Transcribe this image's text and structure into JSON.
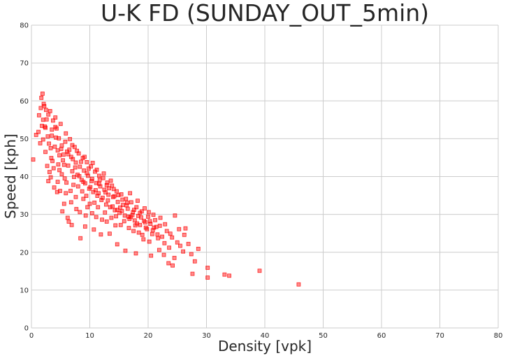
{
  "chart_data": {
    "type": "scatter",
    "title": "U-K FD (SUNDAY_OUT_5min)",
    "xlabel": "Density [vpk]",
    "ylabel": "Speed [kph]",
    "xlim": [
      0,
      80
    ],
    "ylim": [
      0,
      80
    ],
    "xticks": [
      "0",
      "10",
      "20",
      "30",
      "40",
      "50",
      "60",
      "70",
      "80"
    ],
    "yticks": [
      "0",
      "10",
      "20",
      "30",
      "40",
      "50",
      "60",
      "70",
      "80"
    ],
    "grid": true,
    "marker": "square",
    "color": "#ff0000",
    "points": [
      [
        0.3,
        44.5
      ],
      [
        0.8,
        51
      ],
      [
        1.2,
        51.8
      ],
      [
        1.7,
        60.8
      ],
      [
        1.9,
        61.9
      ],
      [
        2.1,
        59.2
      ],
      [
        2.0,
        55
      ],
      [
        2.3,
        53.2
      ],
      [
        2.5,
        57.6
      ],
      [
        2.8,
        50.6
      ],
      [
        3.0,
        48.7
      ],
      [
        3.3,
        47.5
      ],
      [
        3.5,
        52.4
      ],
      [
        3.6,
        44.1
      ],
      [
        3.8,
        42.2
      ],
      [
        4.1,
        55.6
      ],
      [
        4.2,
        50.3
      ],
      [
        4.5,
        46.9
      ],
      [
        4.8,
        41.7
      ],
      [
        5.0,
        53.9
      ],
      [
        5.2,
        48.2
      ],
      [
        5.4,
        44.3
      ],
      [
        5.7,
        39.5
      ],
      [
        5.9,
        51.4
      ],
      [
        6.1,
        46.6
      ],
      [
        6.3,
        42.9
      ],
      [
        6.6,
        49.9
      ],
      [
        6.8,
        45.2
      ],
      [
        7.0,
        41.4
      ],
      [
        7.2,
        37.8
      ],
      [
        7.4,
        47.8
      ],
      [
        7.6,
        43.7
      ],
      [
        7.9,
        40.5
      ],
      [
        8.1,
        46.1
      ],
      [
        8.3,
        42.6
      ],
      [
        8.6,
        39.1
      ],
      [
        8.8,
        44.9
      ],
      [
        9.0,
        41.6
      ],
      [
        9.2,
        38.2
      ],
      [
        9.5,
        43.8
      ],
      [
        9.7,
        40.2
      ],
      [
        9.9,
        36.8
      ],
      [
        10.2,
        42.7
      ],
      [
        10.4,
        39.4
      ],
      [
        10.6,
        35.9
      ],
      [
        10.9,
        41.3
      ],
      [
        11.1,
        38.3
      ],
      [
        11.3,
        34.9
      ],
      [
        11.6,
        40.2
      ],
      [
        11.8,
        37.4
      ],
      [
        12.0,
        33.8
      ],
      [
        12.3,
        39.6
      ],
      [
        12.5,
        36.5
      ],
      [
        12.8,
        32.6
      ],
      [
        13.0,
        38.4
      ],
      [
        13.2,
        35.2
      ],
      [
        13.5,
        31.9
      ],
      [
        13.8,
        37.6
      ],
      [
        14.0,
        34.6
      ],
      [
        14.3,
        31.1
      ],
      [
        14.6,
        36.1
      ],
      [
        14.8,
        33.3
      ],
      [
        15.1,
        30.4
      ],
      [
        15.4,
        35.3
      ],
      [
        15.7,
        32.5
      ],
      [
        16.0,
        29.7
      ],
      [
        16.2,
        34.1
      ],
      [
        16.5,
        31.5
      ],
      [
        16.8,
        28.8
      ],
      [
        17.1,
        33.2
      ],
      [
        17.4,
        30.6
      ],
      [
        17.7,
        28.4
      ],
      [
        18.0,
        31.9
      ],
      [
        18.3,
        29.6
      ],
      [
        18.6,
        27.2
      ],
      [
        18.9,
        30.8
      ],
      [
        19.3,
        28.3
      ],
      [
        19.6,
        26.5
      ],
      [
        20.0,
        29.4
      ],
      [
        20.4,
        27.5
      ],
      [
        20.8,
        25.8
      ],
      [
        21.2,
        28.5
      ],
      [
        21.6,
        24.7
      ],
      [
        22.0,
        27.0
      ],
      [
        22.4,
        24.1
      ],
      [
        22.8,
        22.4
      ],
      [
        23.2,
        25.6
      ],
      [
        23.6,
        21.2
      ],
      [
        24.1,
        23.9
      ],
      [
        24.5,
        18.5
      ],
      [
        25.0,
        22.6
      ],
      [
        25.5,
        21.7
      ],
      [
        26.0,
        20.2
      ],
      [
        26.4,
        26.3
      ],
      [
        26.9,
        22.2
      ],
      [
        27.4,
        19.5
      ],
      [
        28.0,
        17.6
      ],
      [
        28.6,
        20.9
      ],
      [
        30.2,
        15.9
      ],
      [
        30.2,
        13.3
      ],
      [
        33.1,
        14.1
      ],
      [
        33.9,
        13.8
      ],
      [
        39.1,
        15.1
      ],
      [
        45.8,
        11.5
      ],
      [
        2.4,
        46.5
      ],
      [
        3.1,
        41.2
      ],
      [
        4.4,
        35.9
      ],
      [
        5.6,
        32.8
      ],
      [
        6.2,
        29.1
      ],
      [
        6.9,
        27.2
      ],
      [
        7.7,
        31.4
      ],
      [
        8.9,
        34.1
      ],
      [
        9.6,
        31.9
      ],
      [
        10.4,
        30.3
      ],
      [
        11.1,
        29.3
      ],
      [
        12.1,
        28.6
      ],
      [
        13.4,
        24.9
      ],
      [
        14.7,
        22.1
      ],
      [
        16.1,
        20.4
      ],
      [
        17.9,
        19.7
      ],
      [
        19.2,
        23.4
      ],
      [
        20.5,
        19.1
      ],
      [
        21.9,
        20.6
      ],
      [
        22.7,
        19.3
      ],
      [
        23.5,
        17.1
      ],
      [
        24.2,
        16.5
      ],
      [
        27.6,
        14.3
      ],
      [
        2.9,
        38.8
      ],
      [
        3.9,
        37.1
      ],
      [
        4.9,
        36.2
      ],
      [
        5.3,
        30.8
      ],
      [
        6.4,
        28.1
      ],
      [
        8.4,
        23.7
      ],
      [
        9.2,
        26.8
      ],
      [
        10.7,
        26.0
      ],
      [
        11.9,
        24.7
      ],
      [
        12.9,
        28.1
      ],
      [
        15.3,
        27.2
      ],
      [
        18.4,
        25.2
      ],
      [
        1.5,
        48.8
      ],
      [
        1.8,
        53.4
      ],
      [
        2.2,
        58.6
      ],
      [
        2.6,
        55.1
      ],
      [
        3.2,
        57.3
      ],
      [
        3.7,
        54.8
      ],
      [
        4.3,
        52.7
      ],
      [
        4.7,
        50.1
      ],
      [
        5.1,
        47.3
      ],
      [
        5.5,
        45.8
      ],
      [
        5.8,
        49.2
      ],
      [
        6.5,
        47.1
      ],
      [
        7.1,
        44.6
      ],
      [
        7.8,
        46.8
      ],
      [
        8.5,
        43.9
      ],
      [
        9.1,
        45.2
      ],
      [
        9.8,
        42.1
      ],
      [
        10.5,
        43.6
      ],
      [
        11.2,
        41.8
      ],
      [
        11.7,
        39.1
      ],
      [
        12.4,
        40.8
      ],
      [
        12.9,
        37.7
      ],
      [
        13.6,
        38.9
      ],
      [
        14.1,
        36.7
      ],
      [
        14.9,
        35.1
      ],
      [
        15.6,
        33.9
      ],
      [
        16.3,
        32.4
      ],
      [
        16.9,
        35.6
      ],
      [
        17.6,
        31.2
      ],
      [
        18.2,
        33.6
      ],
      [
        18.8,
        29.2
      ],
      [
        19.4,
        31.6
      ],
      [
        20.1,
        30.6
      ],
      [
        20.9,
        29.9
      ],
      [
        21.4,
        26.7
      ],
      [
        22.1,
        29.1
      ],
      [
        22.9,
        27.4
      ],
      [
        23.8,
        24.9
      ],
      [
        24.6,
        29.7
      ],
      [
        25.3,
        26.1
      ],
      [
        26.2,
        24.6
      ],
      [
        2.7,
        42.8
      ],
      [
        3.4,
        44.9
      ],
      [
        4.0,
        47.9
      ],
      [
        4.6,
        43.2
      ],
      [
        5.2,
        40.6
      ],
      [
        6.0,
        38.4
      ],
      [
        6.7,
        36.2
      ],
      [
        7.3,
        39.9
      ],
      [
        8.0,
        37.4
      ],
      [
        8.7,
        36.1
      ],
      [
        9.4,
        34.9
      ],
      [
        10.1,
        37.2
      ],
      [
        10.8,
        33.1
      ],
      [
        11.5,
        35.6
      ],
      [
        12.2,
        34.4
      ],
      [
        13.1,
        33.7
      ],
      [
        13.9,
        32.1
      ],
      [
        14.5,
        29.5
      ],
      [
        15.2,
        31.8
      ],
      [
        15.9,
        28.2
      ],
      [
        16.7,
        26.4
      ],
      [
        17.3,
        29.8
      ],
      [
        18.1,
        27.6
      ],
      [
        19.8,
        26.1
      ],
      [
        20.7,
        24.8
      ],
      [
        21.7,
        23.7
      ],
      [
        1.3,
        56.2
      ],
      [
        1.6,
        58.1
      ],
      [
        2.0,
        49.8
      ],
      [
        2.4,
        52.9
      ],
      [
        2.9,
        56.4
      ],
      [
        3.5,
        50.8
      ],
      [
        4.1,
        53.1
      ],
      [
        4.8,
        45.6
      ],
      [
        5.6,
        43.1
      ],
      [
        6.3,
        45.9
      ],
      [
        7.0,
        48.3
      ],
      [
        7.5,
        42.4
      ],
      [
        8.2,
        40.1
      ],
      [
        8.9,
        38.6
      ],
      [
        9.5,
        40.9
      ],
      [
        10.3,
        38.8
      ],
      [
        11.0,
        36.4
      ],
      [
        11.6,
        38.1
      ],
      [
        12.7,
        35.8
      ],
      [
        13.3,
        36.9
      ],
      [
        14.2,
        34.8
      ],
      [
        14.7,
        31.2
      ],
      [
        15.5,
        30.9
      ],
      [
        16.4,
        33.1
      ],
      [
        17.0,
        29.3
      ],
      [
        17.8,
        27.1
      ],
      [
        18.6,
        30.4
      ],
      [
        19.5,
        27.9
      ],
      [
        20.3,
        28.2
      ],
      [
        21.0,
        26.5
      ],
      [
        3.3,
        39.8
      ],
      [
        4.5,
        38.6
      ],
      [
        5.9,
        35.6
      ],
      [
        6.8,
        33.2
      ],
      [
        7.6,
        34.6
      ],
      [
        8.3,
        30.6
      ],
      [
        9.3,
        29.7
      ],
      [
        10.0,
        32.8
      ],
      [
        11.4,
        31.9
      ],
      [
        12.6,
        30.5
      ],
      [
        13.7,
        29.1
      ],
      [
        14.4,
        27.1
      ],
      [
        16.6,
        29.4
      ],
      [
        17.5,
        25.6
      ],
      [
        19.0,
        24.6
      ],
      [
        20.2,
        22.8
      ]
    ]
  }
}
